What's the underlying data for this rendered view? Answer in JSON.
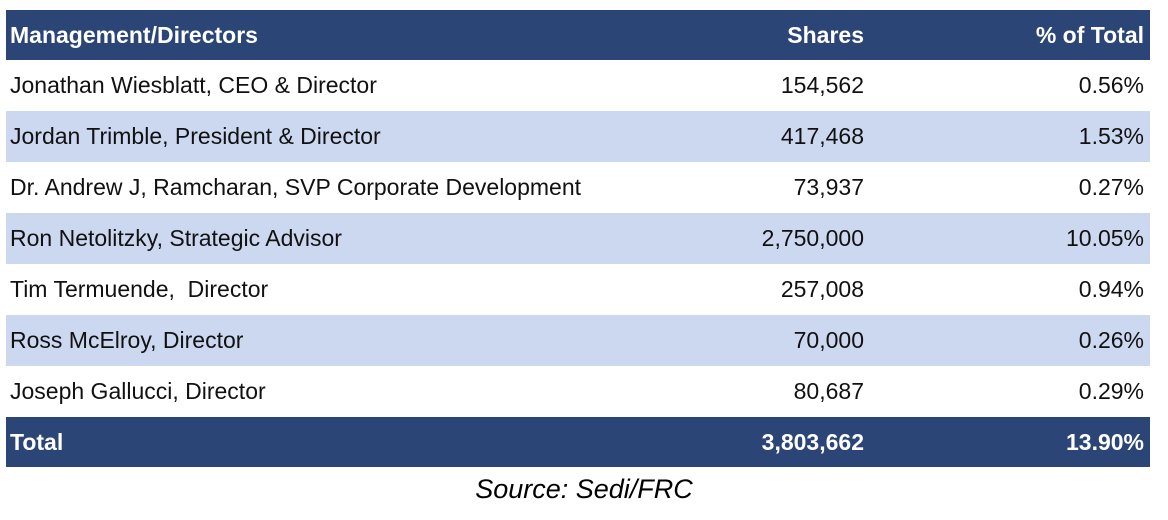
{
  "table": {
    "headers": {
      "name": "Management/Directors",
      "shares": "Shares",
      "pct": "% of Total"
    },
    "rows": [
      {
        "name": "Jonathan Wiesblatt, CEO & Director",
        "shares": "154,562",
        "pct": "0.56%"
      },
      {
        "name": "Jordan Trimble, President & Director",
        "shares": "417,468",
        "pct": "1.53%"
      },
      {
        "name": "Dr. Andrew J, Ramcharan, SVP Corporate Development",
        "shares": "73,937",
        "pct": "0.27%"
      },
      {
        "name": "Ron Netolitzky, Strategic Advisor",
        "shares": "2,750,000",
        "pct": "10.05%"
      },
      {
        "name": "Tim Termuende,  Director",
        "shares": "257,008",
        "pct": "0.94%"
      },
      {
        "name": "Ross McElroy, Director",
        "shares": "70,000",
        "pct": "0.26%"
      },
      {
        "name": "Joseph Gallucci, Director",
        "shares": "80,687",
        "pct": "0.29%"
      }
    ],
    "total": {
      "name": "Total",
      "shares": "3,803,662",
      "pct": "13.90%"
    }
  },
  "source": "Source: Sedi/FRC",
  "colors": {
    "header_bg": "#2b4576",
    "alt_row_bg": "#ccd8f0"
  }
}
